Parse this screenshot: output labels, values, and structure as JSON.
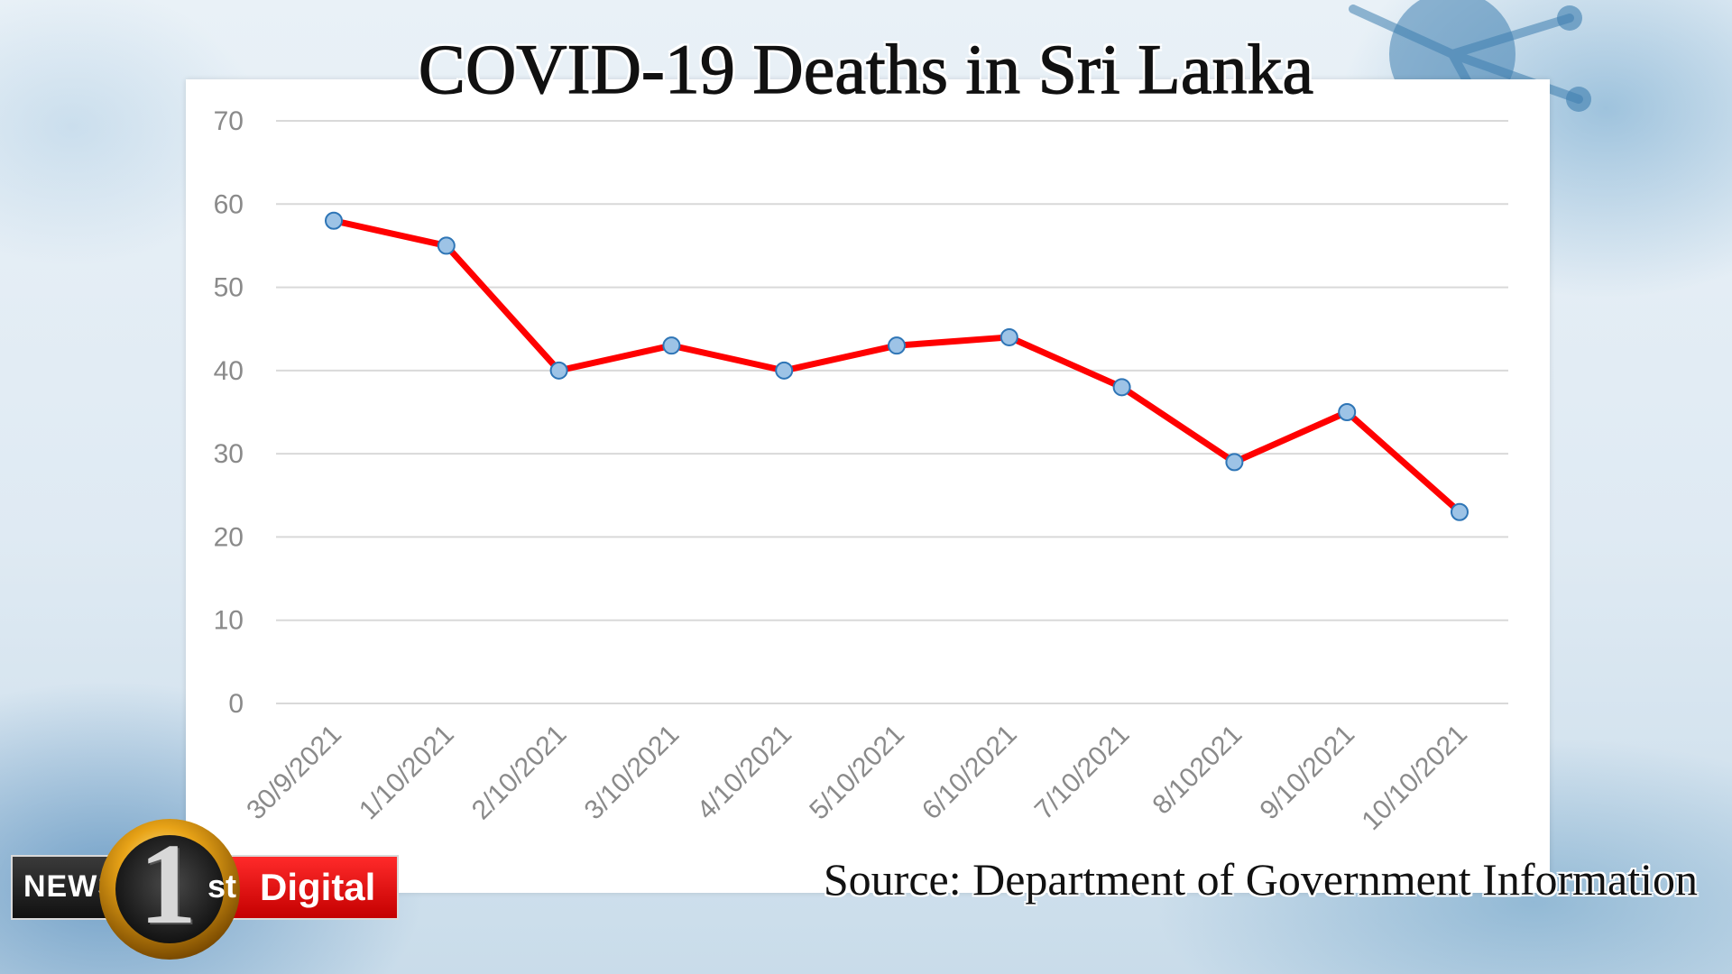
{
  "title": "COVID-19 Deaths in Sri Lanka",
  "source": "Source: Department of Government Information",
  "logo": {
    "news": "NEWS",
    "one": "1",
    "st": "st",
    "digital": "Digital"
  },
  "colors": {
    "line": "#ff0000",
    "marker_fill": "#9dc3e6",
    "marker_stroke": "#2e75b6",
    "grid": "#d9d9d9",
    "logo_red": "#e60000",
    "logo_gold": "#e8a317"
  },
  "chart_data": {
    "type": "line",
    "categories": [
      "30/9/2021",
      "1/10/2021",
      "2/10/2021",
      "3/10/2021",
      "4/10/2021",
      "5/10/2021",
      "6/10/2021",
      "7/10/2021",
      "8/102021",
      "9/10/2021",
      "10/10/2021"
    ],
    "series": [
      {
        "values": [
          58,
          55,
          40,
          43,
          40,
          43,
          44,
          38,
          29,
          35,
          23
        ]
      }
    ],
    "y_ticks": [
      "0",
      "10",
      "20",
      "30",
      "40",
      "50",
      "60",
      "70"
    ],
    "ylim": [
      0,
      70
    ],
    "grid": true,
    "legend": "none"
  }
}
